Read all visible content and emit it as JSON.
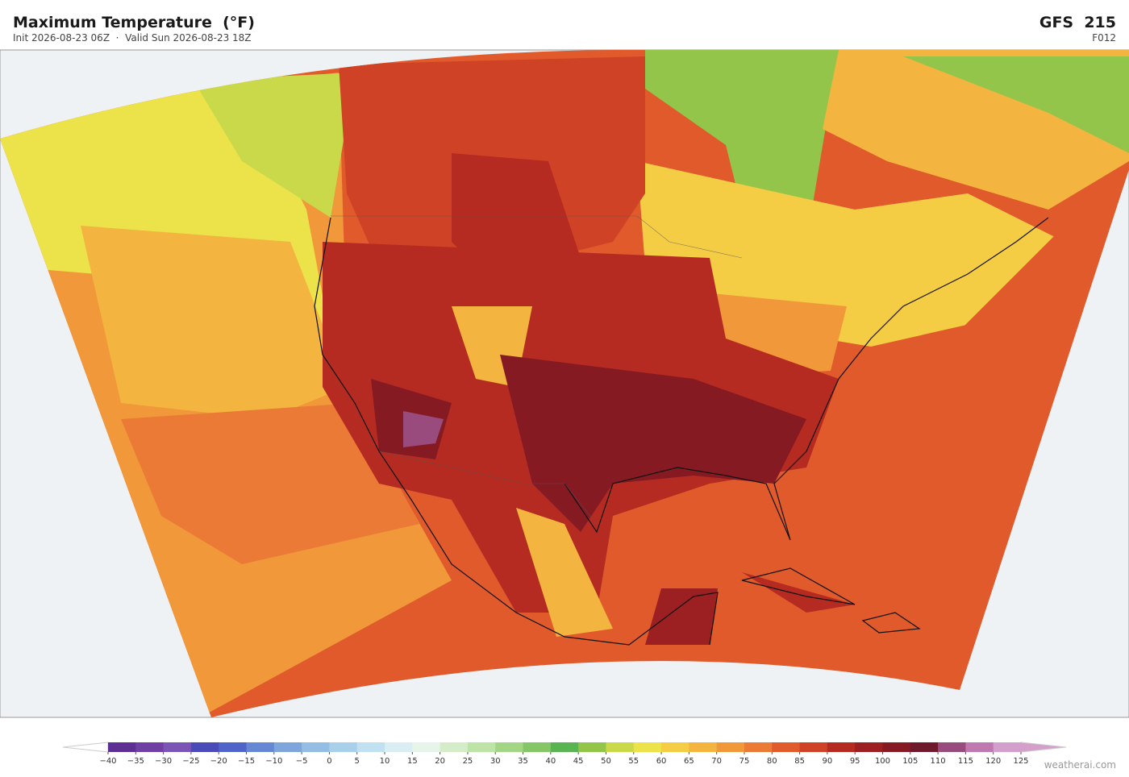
{
  "header": {
    "title": "Maximum Temperature  (°F)",
    "subtitle": "Init 2026-08-23 06Z  ·  Valid Sun 2026-08-23 18Z",
    "model": "GFS  215",
    "forecast_hour": "F012"
  },
  "colorbar": {
    "ticks": [
      {
        "value": -40,
        "label": "−40"
      },
      {
        "value": -35,
        "label": "−35"
      },
      {
        "value": -30,
        "label": "−30"
      },
      {
        "value": -25,
        "label": "−25"
      },
      {
        "value": -20,
        "label": "−20"
      },
      {
        "value": -15,
        "label": "−15"
      },
      {
        "value": -10,
        "label": "−10"
      },
      {
        "value": -5,
        "label": "−5"
      },
      0,
      5,
      10,
      15,
      20,
      25,
      30,
      35,
      40,
      45,
      50,
      55,
      60,
      65,
      70,
      75,
      80,
      85,
      90,
      95,
      100,
      105,
      110,
      115,
      120,
      125
    ],
    "colors": [
      "#5d2f93",
      "#6f3fa3",
      "#7b55b5",
      "#4a4ab8",
      "#4f63c8",
      "#6587d4",
      "#7ea6dc",
      "#93bde3",
      "#a9d0ea",
      "#c1e1f0",
      "#d9eef2",
      "#e6f4ea",
      "#d4edc8",
      "#bde3a6",
      "#a2d685",
      "#85c767",
      "#58b551",
      "#93c54a",
      "#c9d94a",
      "#ece34a",
      "#f4cd45",
      "#f3b53f",
      "#f0983a",
      "#ea7a35",
      "#e05a2b",
      "#cf4226",
      "#b52b22",
      "#9c1f22",
      "#861a23",
      "#6f1a2b",
      "#9a4b7e",
      "#bf78b0",
      "#d59fcc"
    ],
    "under_color": "#ffffff",
    "over_color": "#d59fcc"
  },
  "footer": {
    "credit": "weatherai.com"
  }
}
